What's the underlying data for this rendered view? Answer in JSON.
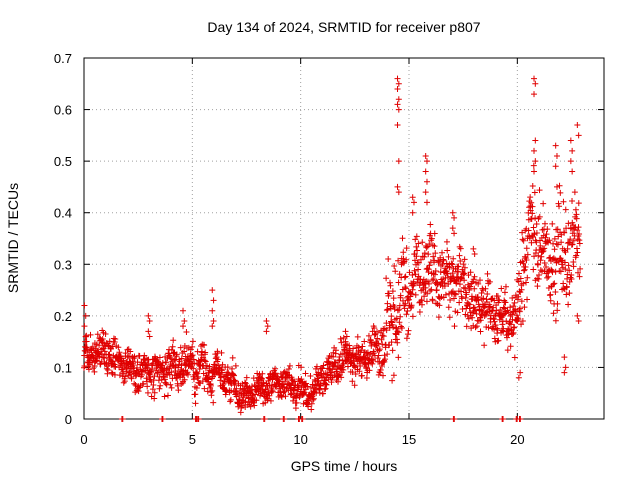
{
  "chart_data": {
    "type": "scatter",
    "title": "Day 134 of 2024, SRMTID for receiver p807",
    "xlabel": "GPS time / hours",
    "ylabel": "SRMTID / TECUs",
    "xlim": [
      0,
      24
    ],
    "ylim": [
      0,
      0.7
    ],
    "xticks": [
      0,
      5,
      10,
      15,
      20
    ],
    "xtick_labels": [
      "0",
      "5",
      "10",
      "15",
      "20"
    ],
    "yticks": [
      0,
      0.1,
      0.2,
      0.3,
      0.4,
      0.5,
      0.6,
      0.7
    ],
    "ytick_labels": [
      "0",
      "0.1",
      "0.2",
      "0.3",
      "0.4",
      "0.5",
      "0.6",
      "0.7"
    ],
    "grid": true,
    "marker": "plus",
    "marker_color": "#e00000",
    "series": [
      {
        "name": "SRMTID",
        "profile_x": [
          0,
          1,
          2,
          3,
          4,
          5,
          6,
          7,
          7.5,
          8,
          9,
          10,
          10.5,
          11,
          12,
          13,
          13.8,
          14.2,
          14.6,
          15,
          15.5,
          16,
          16.5,
          17,
          17.5,
          18,
          18.5,
          19,
          19.5,
          20,
          20.3,
          20.7,
          21,
          21.5,
          22,
          22.5,
          22.9
        ],
        "profile_median": [
          0.12,
          0.13,
          0.1,
          0.09,
          0.1,
          0.1,
          0.09,
          0.06,
          0.04,
          0.06,
          0.07,
          0.06,
          0.05,
          0.08,
          0.12,
          0.11,
          0.14,
          0.2,
          0.24,
          0.26,
          0.28,
          0.3,
          0.28,
          0.27,
          0.26,
          0.23,
          0.22,
          0.2,
          0.19,
          0.2,
          0.3,
          0.37,
          0.35,
          0.3,
          0.32,
          0.33,
          0.34
        ],
        "profile_spread": [
          0.03,
          0.03,
          0.03,
          0.03,
          0.035,
          0.035,
          0.035,
          0.03,
          0.025,
          0.025,
          0.025,
          0.025,
          0.025,
          0.03,
          0.03,
          0.03,
          0.05,
          0.09,
          0.08,
          0.07,
          0.06,
          0.06,
          0.055,
          0.055,
          0.05,
          0.05,
          0.04,
          0.04,
          0.04,
          0.05,
          0.08,
          0.08,
          0.07,
          0.07,
          0.08,
          0.08,
          0.08
        ],
        "bursts": [
          {
            "x": 0.05,
            "values": [
              0.22,
              0.2,
              0.18,
              0.16
            ]
          },
          {
            "x": 3.0,
            "values": [
              0.2,
              0.19,
              0.17,
              0.16
            ]
          },
          {
            "x": 4.6,
            "values": [
              0.21,
              0.19,
              0.18
            ]
          },
          {
            "x": 5.95,
            "values": [
              0.25,
              0.23,
              0.21,
              0.19,
              0.18
            ]
          },
          {
            "x": 8.45,
            "values": [
              0.19,
              0.18,
              0.17
            ]
          },
          {
            "x": 12.1,
            "values": [
              0.17,
              0.16,
              0.15
            ]
          },
          {
            "x": 14.5,
            "values": [
              0.66,
              0.65,
              0.64,
              0.62,
              0.61,
              0.6,
              0.57,
              0.5,
              0.45,
              0.44
            ]
          },
          {
            "x": 15.2,
            "values": [
              0.43,
              0.42,
              0.4
            ]
          },
          {
            "x": 15.8,
            "values": [
              0.51,
              0.5,
              0.48,
              0.46,
              0.44,
              0.42
            ]
          },
          {
            "x": 17.05,
            "values": [
              0.4,
              0.39,
              0.37,
              0.36
            ]
          },
          {
            "x": 18.0,
            "values": [
              0.33,
              0.32
            ]
          },
          {
            "x": 20.1,
            "values": [
              0.08,
              0.09
            ]
          },
          {
            "x": 20.8,
            "values": [
              0.66,
              0.65,
              0.63,
              0.54,
              0.52,
              0.5,
              0.48
            ]
          },
          {
            "x": 21.8,
            "values": [
              0.53,
              0.51,
              0.49,
              0.45
            ]
          },
          {
            "x": 22.5,
            "values": [
              0.54,
              0.52,
              0.5,
              0.48
            ]
          },
          {
            "x": 22.8,
            "values": [
              0.57,
              0.55,
              0.2,
              0.19
            ]
          },
          {
            "x": 22.2,
            "values": [
              0.09,
              0.1,
              0.12
            ]
          }
        ],
        "zero_markers_x": [
          1.75,
          3.6,
          5.15,
          5.25,
          8.3,
          9.2,
          9.9,
          10.05,
          17.05,
          19.3,
          19.95,
          20.1
        ]
      }
    ]
  }
}
